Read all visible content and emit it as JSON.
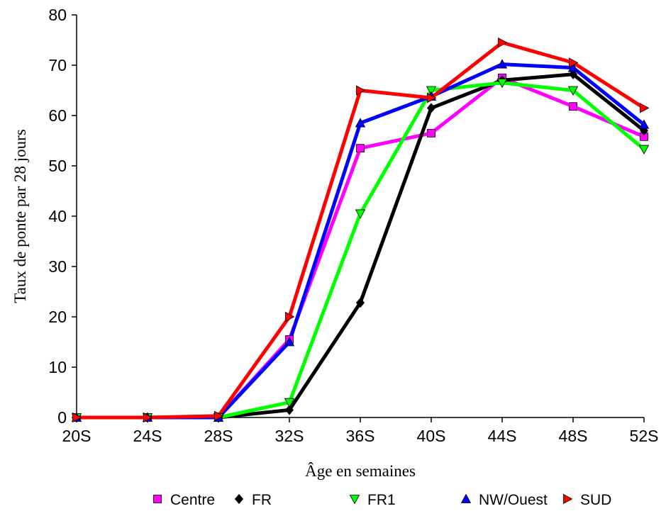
{
  "chart_data": {
    "type": "line",
    "title": "",
    "xlabel": "Âge en semaines",
    "ylabel": "Taux de ponte par 28 jours",
    "categories": [
      "20S",
      "24S",
      "28S",
      "32S",
      "36S",
      "40S",
      "44S",
      "48S",
      "52S"
    ],
    "ylim": [
      0,
      80
    ],
    "yticks": [
      0,
      10,
      20,
      30,
      40,
      50,
      60,
      70,
      80
    ],
    "grid": false,
    "legend_position": "bottom",
    "series": [
      {
        "name": "Centre",
        "color": "#ff00ff",
        "marker": "square",
        "values": [
          0,
          0,
          0,
          15.5,
          53.5,
          56.5,
          67.5,
          61.8,
          55.8
        ]
      },
      {
        "name": "FR",
        "color": "#000000",
        "marker": "diamond",
        "values": [
          0,
          0,
          0,
          1.5,
          22.8,
          61.5,
          67.0,
          68.2,
          57.0
        ]
      },
      {
        "name": "FR1",
        "color": "#00ff00",
        "marker": "triangle-down",
        "values": [
          0,
          0,
          0,
          3.0,
          40.5,
          65.0,
          66.5,
          65.0,
          53.3
        ]
      },
      {
        "name": "NW/Ouest",
        "color": "#0000ff",
        "marker": "triangle-up",
        "values": [
          0,
          0,
          0,
          15.0,
          58.5,
          63.8,
          70.2,
          69.5,
          58.2
        ]
      },
      {
        "name": "SUD",
        "color": "#ff0000",
        "marker": "triangle-right",
        "values": [
          0,
          0,
          0.3,
          20.0,
          65.0,
          63.5,
          74.5,
          70.5,
          61.5
        ]
      }
    ]
  }
}
